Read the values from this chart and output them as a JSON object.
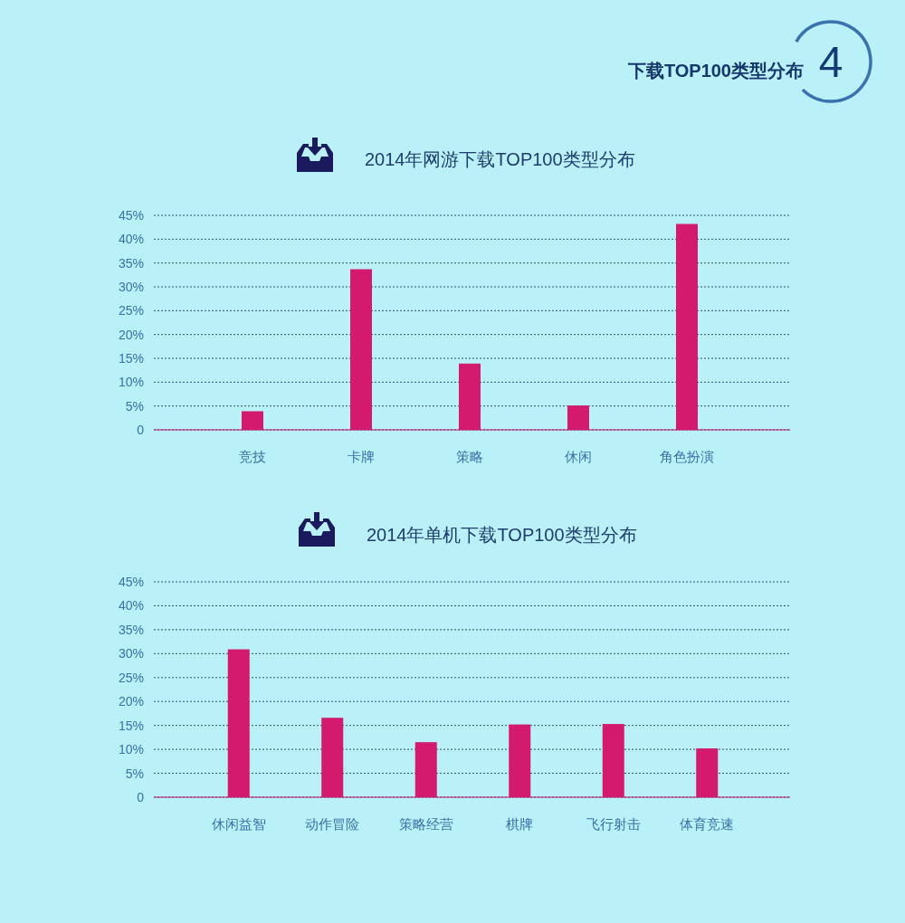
{
  "chart_data": [
    {
      "type": "other",
      "title": "下载TOP100类型分布",
      "annotations": [
        "4"
      ]
    },
    {
      "type": "bar",
      "title": "2014年网游下载TOP100类型分布",
      "categories": [
        "竞技",
        "卡牌",
        "策略",
        "休闲",
        "角色扮演"
      ],
      "values": [
        3.9,
        33.7,
        13.9,
        5.1,
        43.2
      ],
      "color": "#d31a6e",
      "ylim": [
        0,
        45
      ],
      "yticks": [
        0,
        {
          "value": 5,
          "label": "5%"
        },
        {
          "value": 10,
          "label": "10%"
        },
        {
          "value": 15,
          "label": "15%"
        },
        {
          "value": 20,
          "label": "20%"
        },
        {
          "value": 25,
          "label": "25%"
        },
        {
          "value": 30,
          "label": "30%"
        },
        {
          "value": 35,
          "label": "35%"
        },
        {
          "value": 40,
          "label": "40%"
        },
        {
          "value": 45,
          "label": "45%"
        }
      ],
      "grid": "y"
    },
    {
      "type": "bar",
      "title": "2014年单机下载TOP100类型分布",
      "categories": [
        "休闲益智",
        "动作冒险",
        "策略经营",
        "棋牌",
        "飞行射击",
        "体育竞速"
      ],
      "values": [
        30.9,
        16.6,
        11.5,
        15.2,
        15.3,
        10.2
      ],
      "color": "#d31a6e",
      "ylim": [
        0,
        45
      ],
      "yticks": [
        0,
        {
          "value": 5,
          "label": "5%"
        },
        {
          "value": 10,
          "label": "10%"
        },
        {
          "value": 15,
          "label": "15%"
        },
        {
          "value": 20,
          "label": "20%"
        },
        {
          "value": 25,
          "label": "25%"
        },
        {
          "value": 30,
          "label": "30%"
        },
        {
          "value": 35,
          "label": "35%"
        },
        {
          "value": 40,
          "label": "40%"
        },
        {
          "value": 45,
          "label": "45%"
        }
      ],
      "grid": "y"
    }
  ]
}
